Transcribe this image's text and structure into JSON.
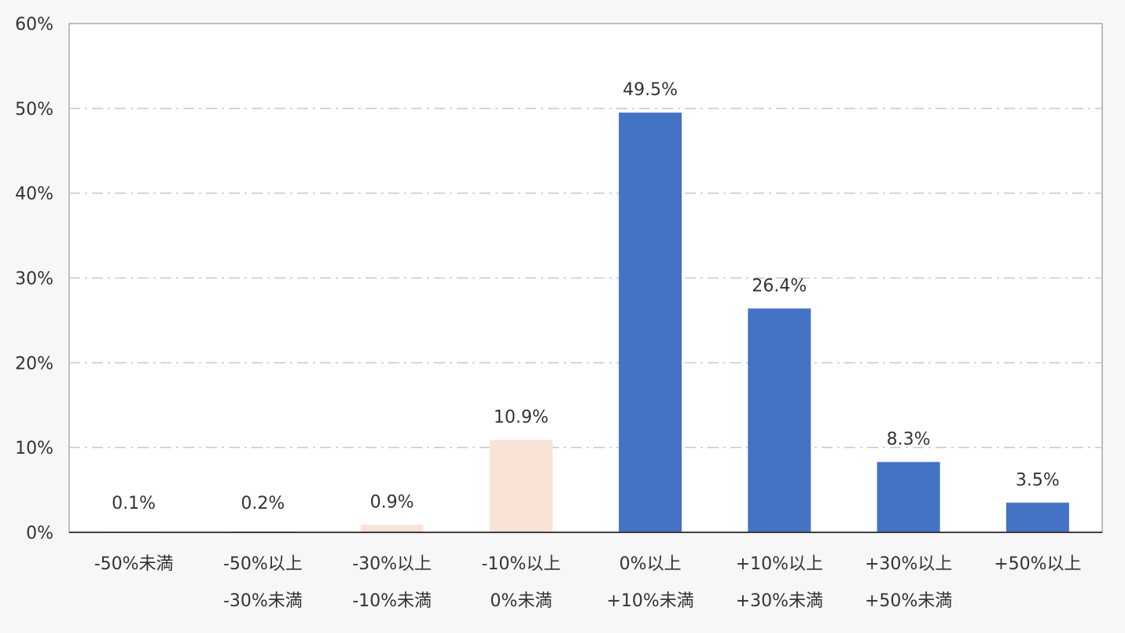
{
  "chart_data": {
    "type": "bar",
    "categories": [
      [
        "-50%未満"
      ],
      [
        "-50%以上",
        "-30%未満"
      ],
      [
        "-30%以上",
        "-10%未満"
      ],
      [
        "-10%以上",
        "0%未満"
      ],
      [
        "0%以上",
        "+10%未満"
      ],
      [
        "+10%以上",
        "+30%未満"
      ],
      [
        "+30%以上",
        "+50%未満"
      ],
      [
        "+50%以上"
      ]
    ],
    "values": [
      0.1,
      0.2,
      0.9,
      10.9,
      49.5,
      26.4,
      8.3,
      3.5
    ],
    "data_labels": [
      "0.1%",
      "0.2%",
      "0.9%",
      "10.9%",
      "49.5%",
      "26.4%",
      "8.3%",
      "3.5%"
    ],
    "bar_colors": [
      "#f9e3d6",
      "#f9e3d6",
      "#f9e3d6",
      "#f9e3d6",
      "#4472c4",
      "#4472c4",
      "#4472c4",
      "#4472c4"
    ],
    "yticks": [
      "0%",
      "10%",
      "20%",
      "30%",
      "40%",
      "50%",
      "60%"
    ],
    "ylim": [
      0,
      60
    ],
    "grid": "horizontal dash-dot",
    "title": "",
    "xlabel": "",
    "ylabel": ""
  }
}
